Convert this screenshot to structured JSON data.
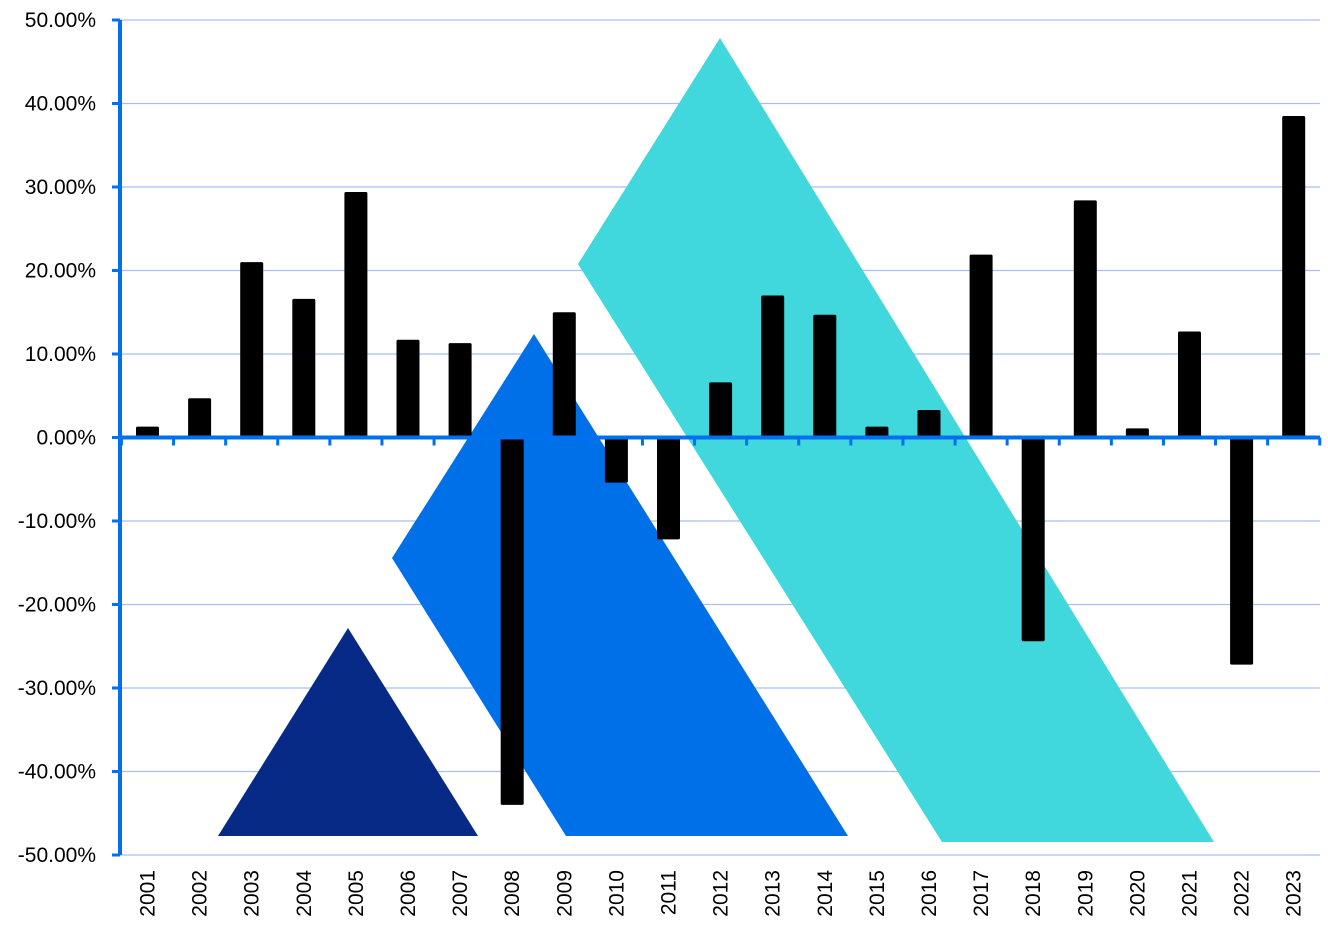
{
  "chart_data": {
    "type": "bar",
    "title": "",
    "xlabel": "",
    "ylabel": "",
    "ylim": [
      -0.5,
      0.5
    ],
    "grid": true,
    "legend": "none",
    "y_tick_values": [
      0.5,
      0.4,
      0.3,
      0.2,
      0.1,
      0.0,
      -0.1,
      -0.2,
      -0.3,
      -0.4,
      -0.5
    ],
    "y_tick_labels": [
      "50.00%",
      "40.00%",
      "30.00%",
      "20.00%",
      "10.00%",
      "0.00%",
      "-10.00%",
      "-20.00%",
      "-30.00%",
      "-40.00%",
      "-50.00%"
    ],
    "categories": [
      "2001",
      "2002",
      "2003",
      "2004",
      "2005",
      "2006",
      "2007",
      "2008",
      "2009",
      "2010",
      "2011",
      "2012",
      "2013",
      "2014",
      "2015",
      "2016",
      "2017",
      "2018",
      "2019",
      "2020",
      "2021",
      "2022",
      "2023"
    ],
    "series": [
      {
        "values": [
          0.013,
          0.047,
          0.21,
          0.166,
          0.294,
          0.117,
          0.113,
          -0.44,
          0.15,
          -0.054,
          -0.122,
          0.066,
          0.17,
          0.147,
          0.013,
          0.033,
          0.219,
          -0.244,
          0.284,
          0.011,
          0.127,
          -0.272,
          0.385
        ]
      }
    ],
    "colors": {
      "bar": "#000000",
      "axis": "#0070f0",
      "grid": "#a9bff0",
      "triangle_small": "#062a86",
      "triangle_medium": "#0070e8",
      "triangle_large": "#40d8dc"
    }
  }
}
